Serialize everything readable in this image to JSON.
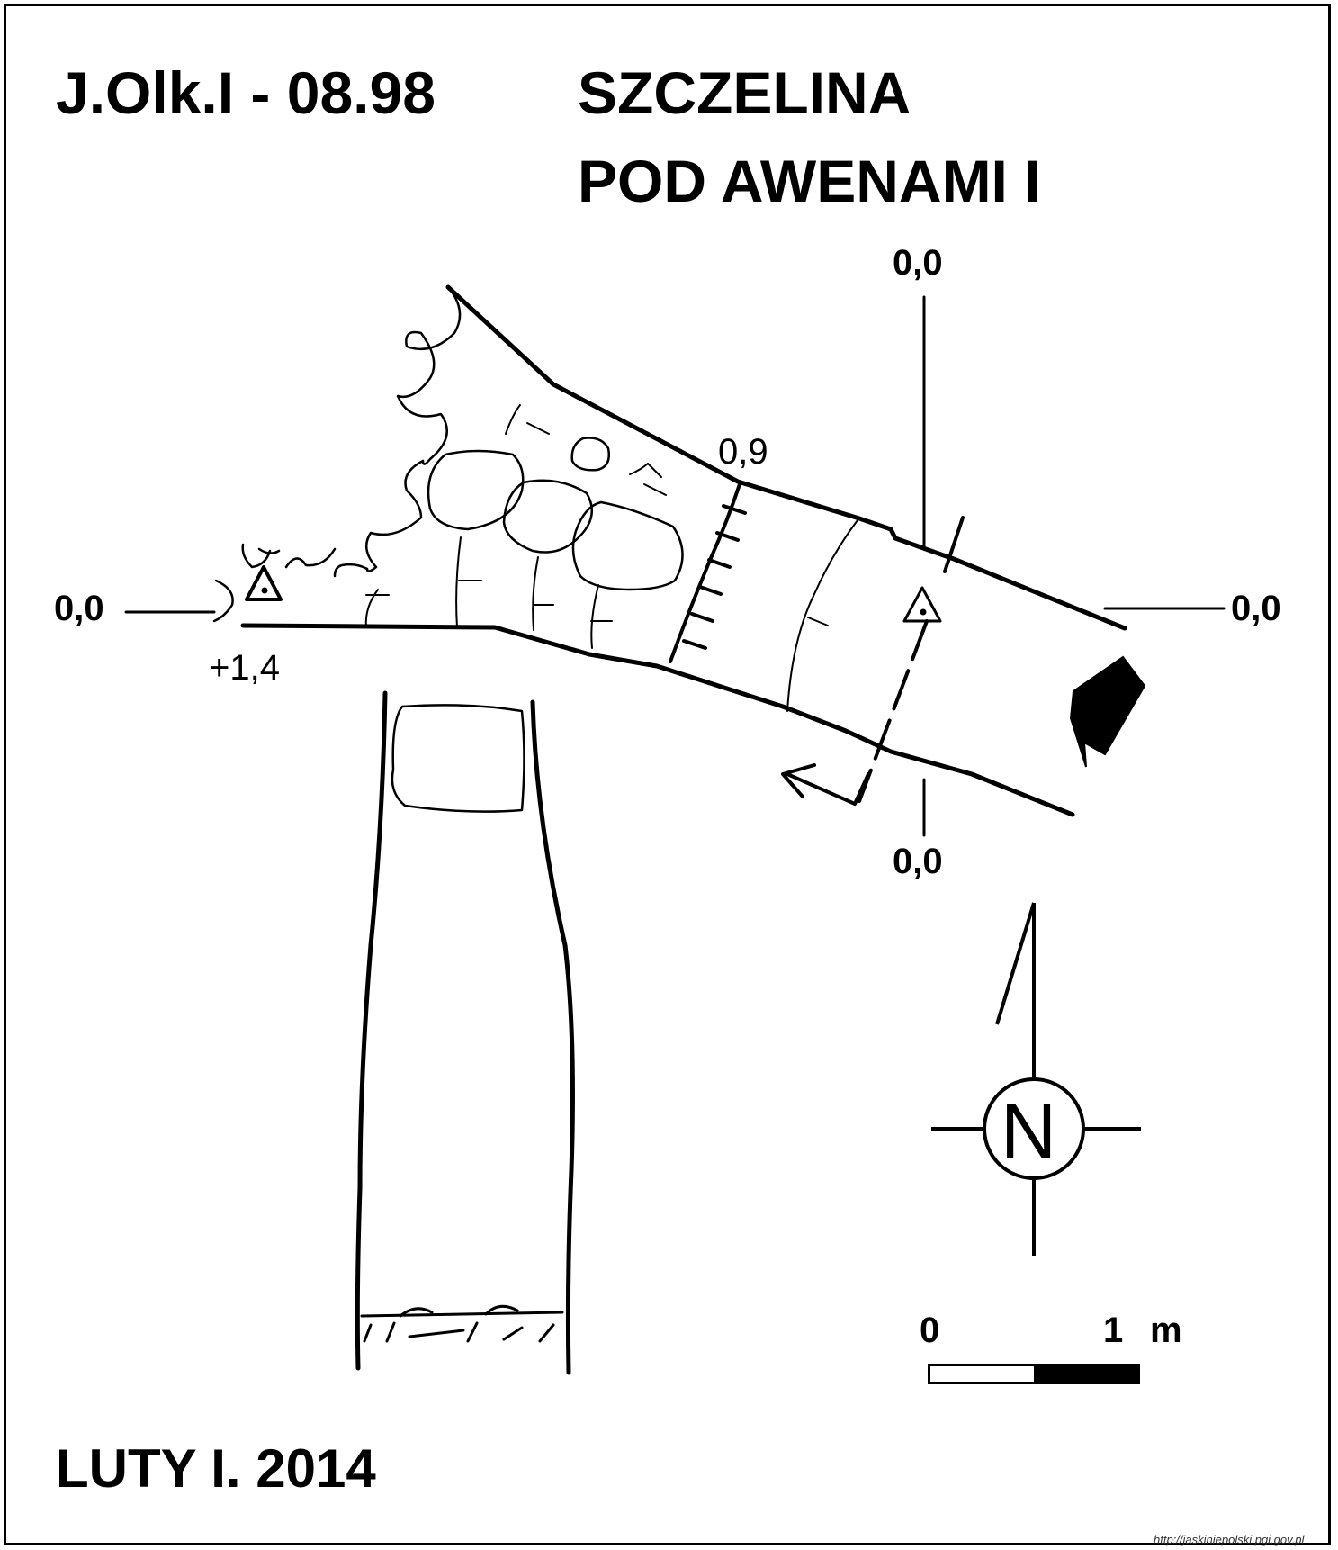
{
  "header": {
    "code": "J.Olk.I - 08.98",
    "name_line1": "SZCZELINA",
    "name_line2": "POD AWENAMI I"
  },
  "depth_labels": {
    "top": "0,0",
    "left": "0,0",
    "right": "0,0",
    "bottom": "0,0",
    "mid": "0,9",
    "plus": "+1,4"
  },
  "compass": {
    "letter": "N",
    "icon": "north-arrow-icon"
  },
  "scale_bar": {
    "start": "0",
    "end": "1",
    "unit": "m",
    "colors": [
      "#ffffff",
      "#000000"
    ]
  },
  "footer": {
    "date": "LUTY I. 2014",
    "credit": "http://jaskiniepolski.pgi.gov.pl"
  }
}
